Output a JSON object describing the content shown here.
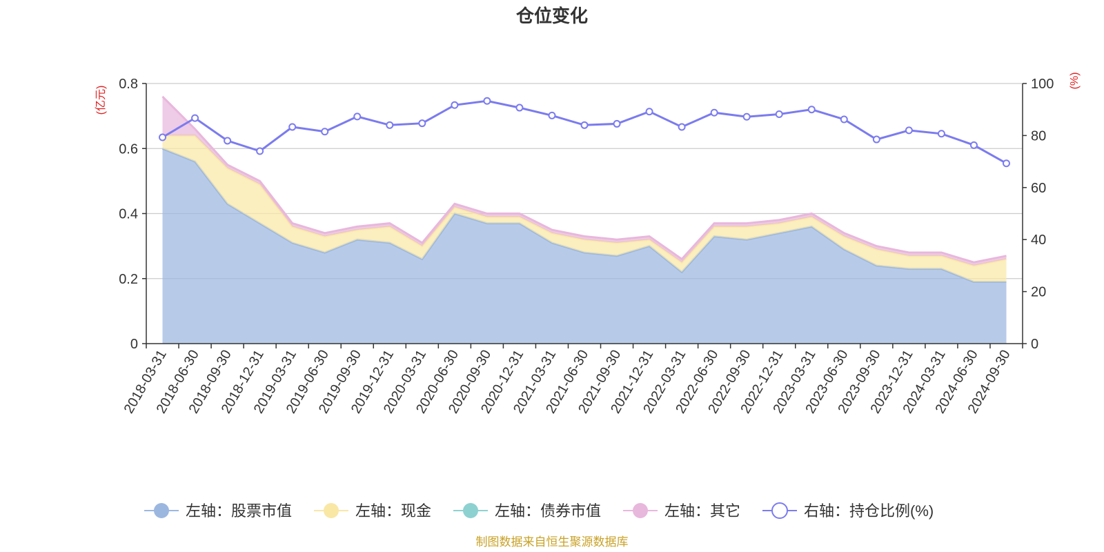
{
  "chart_data": {
    "type": "area",
    "title": "仓位变化",
    "left_axis_unit": "(亿元)",
    "right_axis_unit": "(%)",
    "left_ylim": [
      0,
      0.8
    ],
    "left_ticks": [
      "0",
      "0.2",
      "0.4",
      "0.6",
      "0.8"
    ],
    "left_tick_values": [
      0,
      0.2,
      0.4,
      0.6,
      0.8
    ],
    "right_ylim": [
      0,
      100
    ],
    "right_ticks": [
      "0",
      "20",
      "40",
      "60",
      "80",
      "100"
    ],
    "right_tick_values": [
      0,
      20,
      40,
      60,
      80,
      100
    ],
    "x": [
      "2018-03-31",
      "2018-06-30",
      "2018-09-30",
      "2018-12-31",
      "2019-03-31",
      "2019-06-30",
      "2019-09-30",
      "2019-12-31",
      "2020-03-31",
      "2020-06-30",
      "2020-09-30",
      "2020-12-31",
      "2021-03-31",
      "2021-06-30",
      "2021-09-30",
      "2021-12-31",
      "2022-03-31",
      "2022-06-30",
      "2022-09-30",
      "2022-12-31",
      "2023-03-31",
      "2023-06-30",
      "2023-09-30",
      "2023-12-31",
      "2024-03-31",
      "2024-06-30",
      "2024-09-30"
    ],
    "series": [
      {
        "name": "左轴：股票市值",
        "axis": "left",
        "stack": true,
        "color": "#9bb7e0",
        "values": [
          0.6,
          0.56,
          0.43,
          0.37,
          0.31,
          0.28,
          0.32,
          0.31,
          0.26,
          0.4,
          0.37,
          0.37,
          0.31,
          0.28,
          0.27,
          0.3,
          0.22,
          0.33,
          0.32,
          0.34,
          0.36,
          0.29,
          0.24,
          0.23,
          0.23,
          0.19,
          0.19
        ]
      },
      {
        "name": "左轴：现金",
        "axis": "left",
        "stack": true,
        "color": "#f9e7a6",
        "values": [
          0.04,
          0.08,
          0.11,
          0.12,
          0.05,
          0.05,
          0.03,
          0.05,
          0.04,
          0.02,
          0.02,
          0.02,
          0.03,
          0.04,
          0.04,
          0.02,
          0.03,
          0.03,
          0.04,
          0.03,
          0.03,
          0.04,
          0.05,
          0.04,
          0.04,
          0.05,
          0.07
        ]
      },
      {
        "name": "左轴：债券市值",
        "axis": "left",
        "stack": true,
        "color": "#8dd1d1",
        "values": [
          0,
          0,
          0,
          0,
          0,
          0,
          0,
          0,
          0,
          0,
          0,
          0,
          0,
          0,
          0,
          0,
          0,
          0,
          0,
          0,
          0,
          0,
          0,
          0,
          0,
          0,
          0
        ]
      },
      {
        "name": "左轴：其它",
        "axis": "left",
        "stack": true,
        "color": "#e8b7dc",
        "values": [
          0.12,
          0.02,
          0.01,
          0.01,
          0.01,
          0.01,
          0.01,
          0.01,
          0.01,
          0.01,
          0.01,
          0.01,
          0.01,
          0.01,
          0.01,
          0.01,
          0.01,
          0.01,
          0.01,
          0.01,
          0.01,
          0.01,
          0.01,
          0.01,
          0.01,
          0.01,
          0.01
        ]
      },
      {
        "name": "右轴：持仓比例(%)",
        "axis": "right",
        "stack": false,
        "color": "#7b7bef",
        "values": [
          79.3,
          86.7,
          78.0,
          74.0,
          83.3,
          81.5,
          87.3,
          84.0,
          84.7,
          91.7,
          93.3,
          90.7,
          87.7,
          84.0,
          84.5,
          89.2,
          83.3,
          88.8,
          87.2,
          88.2,
          90.0,
          86.2,
          78.5,
          82.0,
          80.7,
          76.3,
          69.3
        ]
      }
    ],
    "grid": true,
    "legend_position": "bottom"
  },
  "colors": {
    "left_unit": "#e02020",
    "right_unit": "#e02020",
    "source": "#c9a227",
    "axis": "#333333",
    "grid": "#cccccc"
  },
  "source_note": "制图数据来自恒生聚源数据库"
}
